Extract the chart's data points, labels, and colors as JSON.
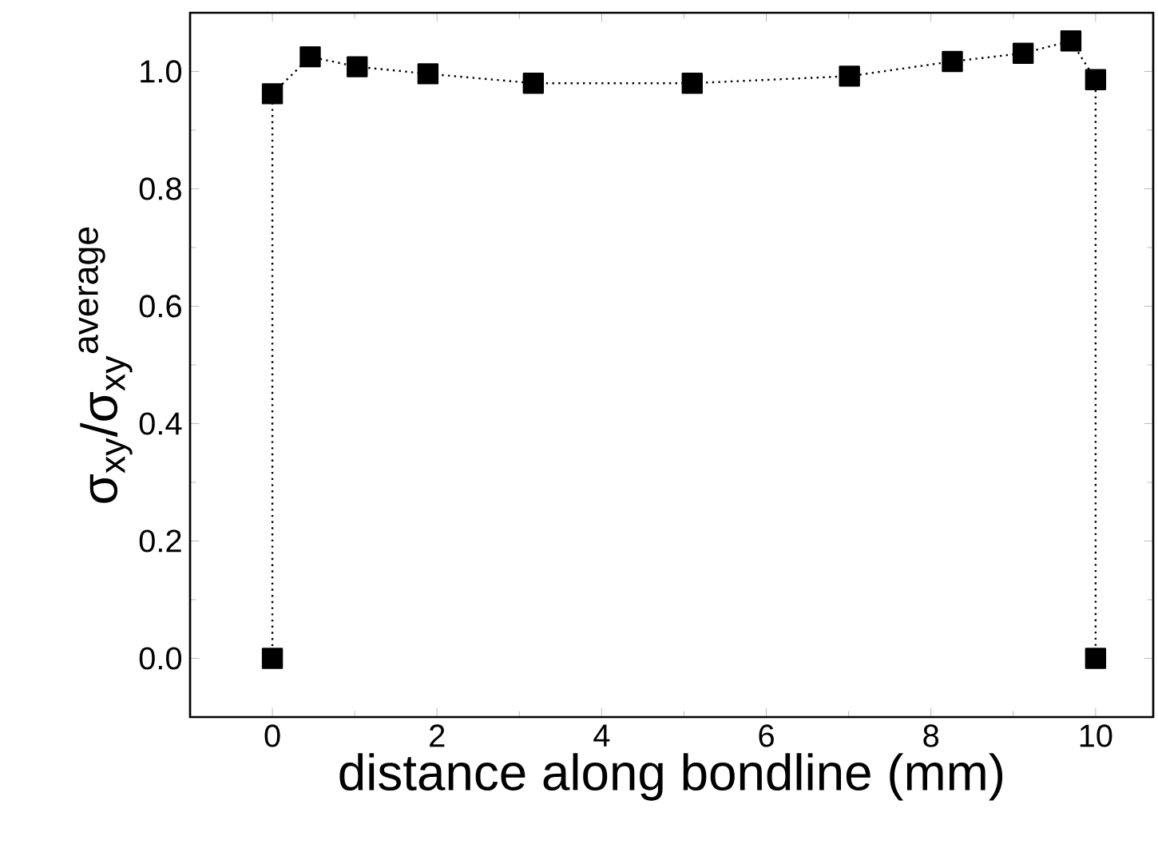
{
  "chart_data": {
    "type": "line",
    "xlabel": "distance along bondline (mm)",
    "ylabel": "σ$_{xy}$/σ$_{xy}$$^{average}$",
    "xlim": [
      -1,
      10.7
    ],
    "ylim": [
      -0.1,
      1.1
    ],
    "xticks": [
      0,
      2,
      4,
      6,
      8,
      10
    ],
    "yticks": [
      {
        "value": 0.0,
        "label": "0.0"
      },
      {
        "value": 0.2,
        "label": "0.2"
      },
      {
        "value": 0.4,
        "label": "0.4"
      },
      {
        "value": 0.6,
        "label": "0.6"
      },
      {
        "value": 0.8,
        "label": "0.8"
      },
      {
        "value": 1.0,
        "label": "1.0"
      }
    ],
    "grid": false,
    "marker": "square",
    "line_style": "dotted",
    "series": [
      {
        "color": "#000000",
        "x": [
          0,
          0,
          0.46,
          1.03,
          1.89,
          3.17,
          5.1,
          7.01,
          8.26,
          9.12,
          9.7,
          10,
          10
        ],
        "values": [
          0,
          0.962,
          1.025,
          1.008,
          0.996,
          0.98,
          0.98,
          0.992,
          1.017,
          1.031,
          1.052,
          0.986,
          0
        ]
      }
    ]
  }
}
